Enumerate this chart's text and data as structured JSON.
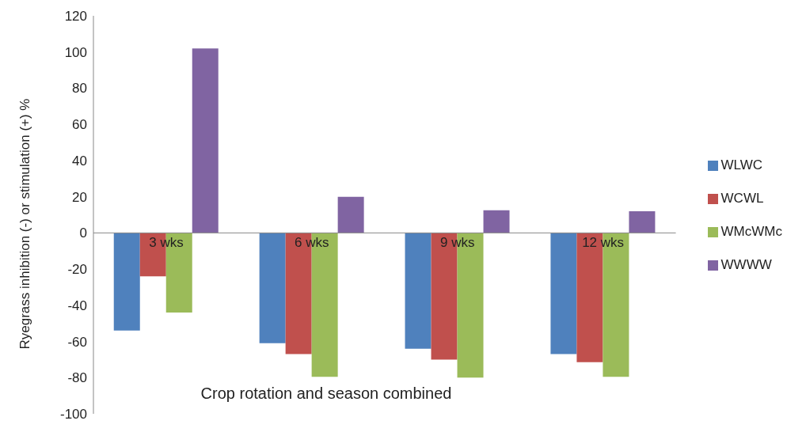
{
  "chart_data": {
    "type": "bar",
    "xlabel": "Crop rotation and season combined",
    "ylabel": "Ryegrass inhibition (-) or stimulation (+) %",
    "categories": [
      "3 wks",
      "6 wks",
      "9 wks",
      "12 wks"
    ],
    "series": [
      {
        "name": "WLWC",
        "color": "#4f81bd",
        "values": [
          -54,
          -61,
          -64,
          -67
        ]
      },
      {
        "name": "WCWL",
        "color": "#c0504d",
        "values": [
          -24,
          -67,
          -70,
          -71.5
        ]
      },
      {
        "name": "WMcWMc",
        "color": "#9bbb59",
        "values": [
          -44,
          -79.5,
          -80,
          -79.5
        ]
      },
      {
        "name": "WWWW",
        "color": "#8064a2",
        "values": [
          102,
          20,
          12.5,
          12
        ]
      }
    ],
    "ylim": [
      -100,
      120
    ],
    "yticks": [
      -100,
      -80,
      -60,
      -40,
      -20,
      0,
      20,
      40,
      60,
      80,
      100,
      120
    ],
    "grid": false,
    "legend": "right"
  }
}
